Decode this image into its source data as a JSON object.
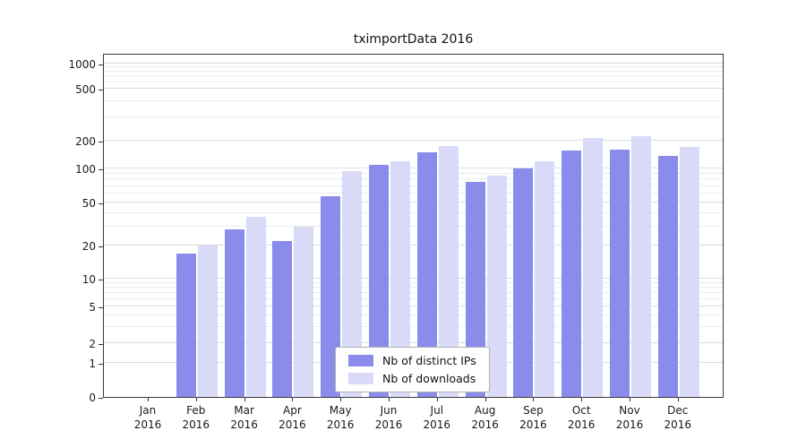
{
  "page": {
    "background": "#ffffff"
  },
  "chart_data": {
    "type": "bar",
    "title": "tximportData 2016",
    "year": "2016",
    "categories": [
      "Jan",
      "Feb",
      "Mar",
      "Apr",
      "May",
      "Jun",
      "Jul",
      "Aug",
      "Sep",
      "Oct",
      "Nov",
      "Dec"
    ],
    "series": [
      {
        "name": "Nb of distinct IPs",
        "color": "#8b8bec",
        "values": [
          0,
          17,
          28,
          22,
          57,
          110,
          150,
          76,
          100,
          155,
          160,
          138
        ]
      },
      {
        "name": "Nb of downloads",
        "color": "#d9d9f8",
        "values": [
          0,
          20,
          37,
          30,
          95,
          120,
          175,
          86,
          120,
          210,
          215,
          170
        ]
      }
    ],
    "y_ticks": [
      0,
      1,
      2,
      5,
      10,
      20,
      50,
      100,
      200,
      500,
      1000
    ],
    "y_scale": "symlog",
    "ylim": [
      0,
      1300
    ],
    "grid": true,
    "legend_position": "bottom-center"
  }
}
